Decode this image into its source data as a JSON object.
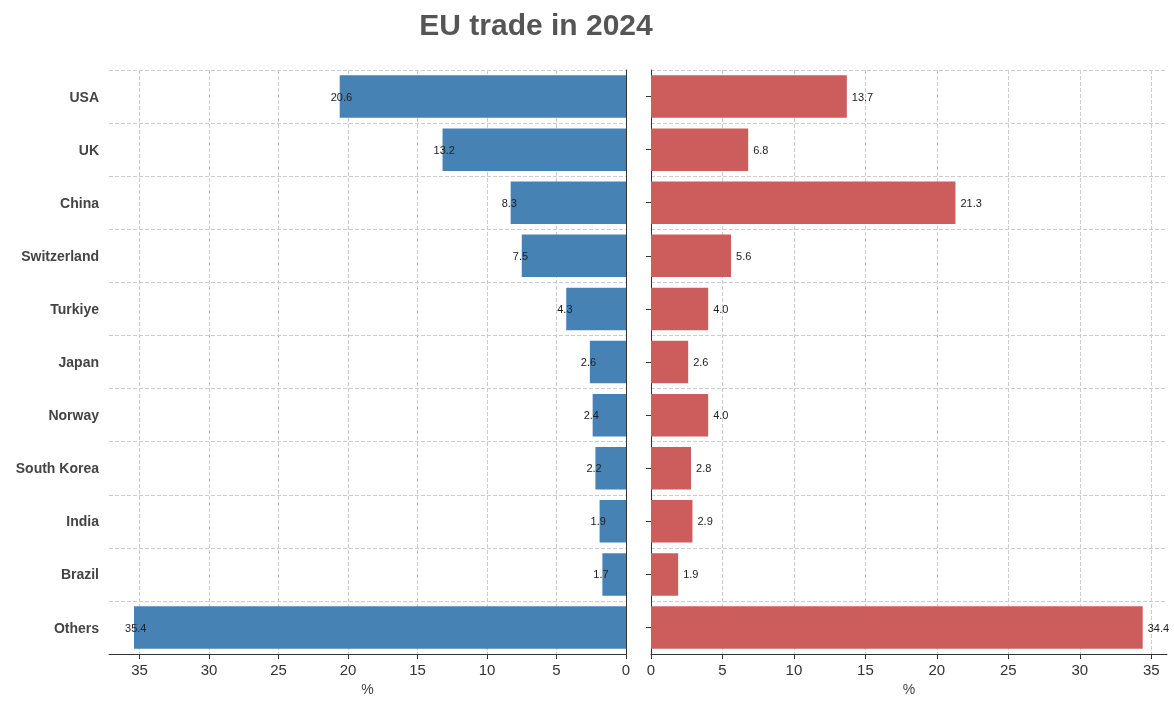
{
  "chart_data": [
    {
      "type": "bar",
      "title": "EU trade in 2024",
      "orientation": "horizontal",
      "categories": [
        "USA",
        "UK",
        "China",
        "Switzerland",
        "Turkiye",
        "Japan",
        "Norway",
        "South Korea",
        "India",
        "Brazil",
        "Others"
      ],
      "series": [
        {
          "color": "#4682b4",
          "values": [
            20.6,
            13.2,
            8.3,
            7.5,
            4.3,
            2.6,
            2.4,
            2.2,
            1.9,
            1.7,
            35.4
          ],
          "value_labels": [
            "20.6",
            "13.2",
            "8.3",
            "7.5",
            "4.3",
            "2.6",
            "2.4",
            "2.2",
            "1.9",
            "1.7",
            "35.4"
          ]
        }
      ],
      "xlim": [
        37.2,
        0
      ],
      "xticks": [
        35,
        30,
        25,
        20,
        15,
        10,
        5,
        0
      ],
      "xlabel": "%",
      "grid": true
    },
    {
      "type": "bar",
      "orientation": "horizontal",
      "categories": [
        null,
        null,
        null,
        null,
        null,
        null,
        null,
        null,
        null,
        null,
        null
      ],
      "series": [
        {
          "color": "#cd5c5c",
          "values": [
            13.7,
            6.8,
            21.3,
            5.6,
            4.0,
            2.6,
            4.0,
            2.8,
            2.9,
            1.9,
            34.4
          ],
          "value_labels": [
            "13.7",
            "6.8",
            "21.3",
            "5.6",
            "4.0",
            "2.6",
            "4.0",
            "2.8",
            "2.9",
            "1.9",
            "34.4"
          ]
        }
      ],
      "xlim": [
        0,
        36.1
      ],
      "xticks": [
        0,
        5,
        10,
        15,
        20,
        25,
        30,
        35
      ],
      "xlabel": "%",
      "grid": true
    }
  ]
}
